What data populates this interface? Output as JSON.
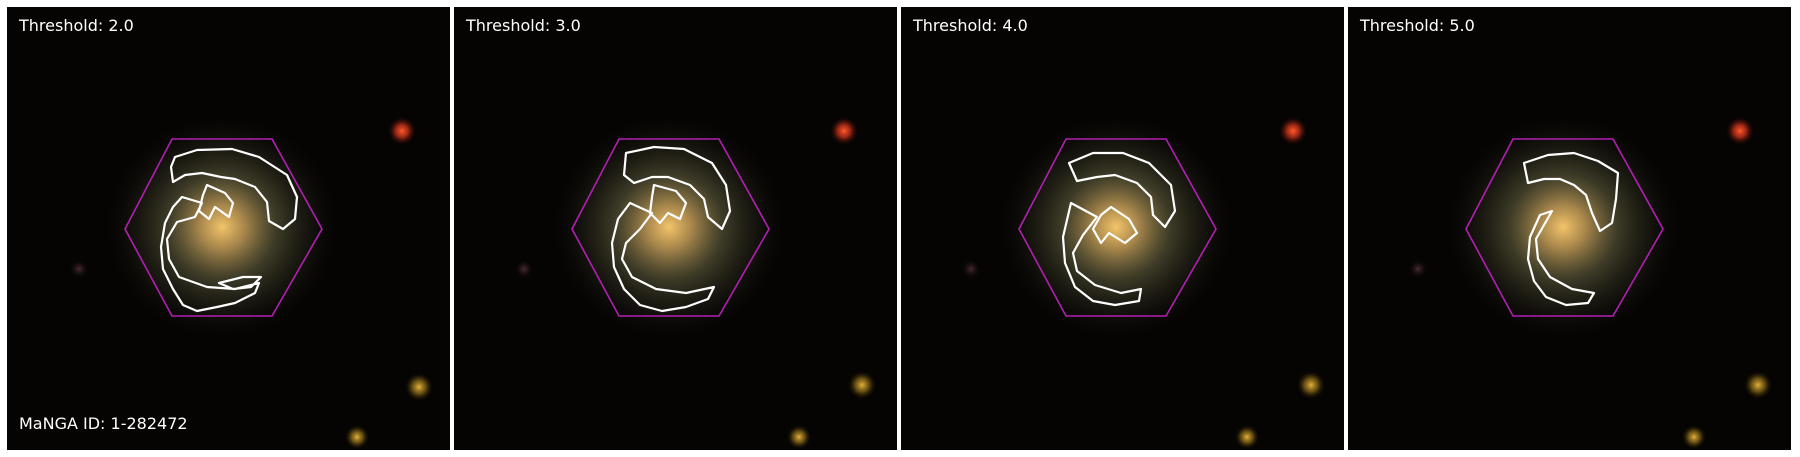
{
  "manga_id_label": "MaNGA ID: 1-282472",
  "colors": {
    "hexagon": "#b21fb2",
    "contour": "#ffffff",
    "background": "#050403"
  },
  "panels": [
    {
      "threshold_label": "Threshold: 2.0"
    },
    {
      "threshold_label": "Threshold: 3.0"
    },
    {
      "threshold_label": "Threshold: 4.0"
    },
    {
      "threshold_label": "Threshold: 5.0"
    }
  ]
}
